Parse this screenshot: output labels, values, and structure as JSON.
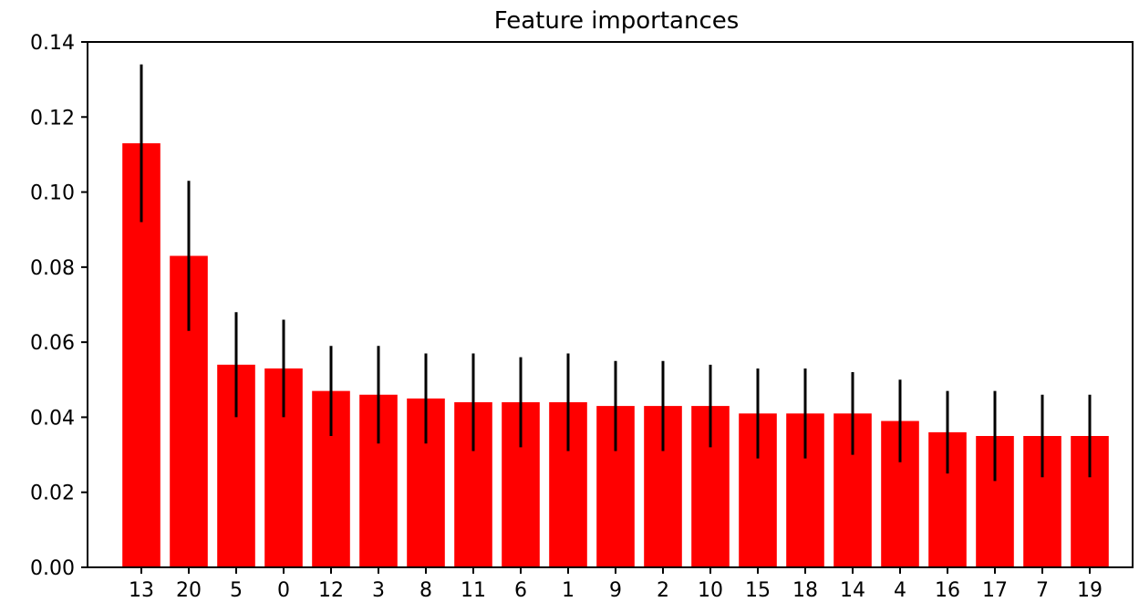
{
  "chart_data": {
    "type": "bar",
    "title": "Feature importances",
    "xlabel": "",
    "ylabel": "",
    "categories": [
      "13",
      "20",
      "5",
      "0",
      "12",
      "3",
      "8",
      "11",
      "6",
      "1",
      "9",
      "2",
      "10",
      "15",
      "18",
      "14",
      "4",
      "16",
      "17",
      "7",
      "19"
    ],
    "values": [
      0.113,
      0.083,
      0.054,
      0.053,
      0.047,
      0.046,
      0.045,
      0.044,
      0.044,
      0.044,
      0.043,
      0.043,
      0.043,
      0.041,
      0.041,
      0.041,
      0.039,
      0.036,
      0.035,
      0.035,
      0.035
    ],
    "errors": [
      0.021,
      0.02,
      0.014,
      0.013,
      0.012,
      0.013,
      0.012,
      0.013,
      0.012,
      0.013,
      0.012,
      0.012,
      0.011,
      0.012,
      0.012,
      0.011,
      0.011,
      0.011,
      0.012,
      0.011,
      0.011
    ],
    "ylim": [
      0,
      0.14
    ],
    "yticks": [
      0.0,
      0.02,
      0.04,
      0.06,
      0.08,
      0.1,
      0.12,
      0.14
    ],
    "ytick_labels": [
      "0.00",
      "0.02",
      "0.04",
      "0.06",
      "0.08",
      "0.10",
      "0.12",
      "0.14"
    ],
    "bar_color": "#ff0000",
    "error_color": "#000000",
    "grid": false,
    "legend": "none"
  }
}
